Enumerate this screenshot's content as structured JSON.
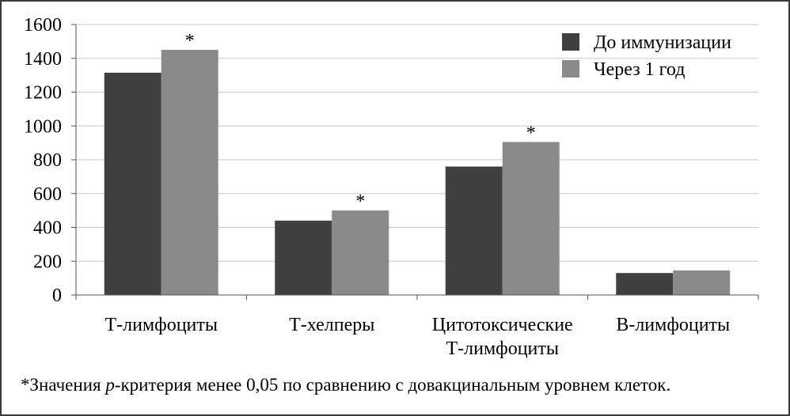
{
  "chart_data": {
    "type": "bar",
    "categories": [
      [
        "Т-лимфоциты"
      ],
      [
        "Т-хелперы"
      ],
      [
        "Цитотоксические",
        "Т-лимфоциты"
      ],
      [
        "В-лимфоциты"
      ]
    ],
    "series": [
      {
        "name": "До иммунизации",
        "color": "#404040",
        "values": [
          1315,
          440,
          760,
          130
        ]
      },
      {
        "name": "Через 1 год",
        "color": "#8a8a8a",
        "values": [
          1450,
          500,
          905,
          145
        ]
      }
    ],
    "significance_marks": [
      {
        "category_index": 0,
        "series_index": 1,
        "mark": "*"
      },
      {
        "category_index": 1,
        "series_index": 1,
        "mark": "*"
      },
      {
        "category_index": 2,
        "series_index": 1,
        "mark": "*"
      }
    ],
    "ylim": [
      0,
      1600
    ],
    "yticks": [
      0,
      200,
      400,
      600,
      800,
      1000,
      1200,
      1400,
      1600
    ],
    "grid": true,
    "legend_position": "top-right"
  },
  "footnote": {
    "prefix": "*Значения ",
    "italic": "p",
    "suffix": "-критерия менее 0,05 по сравнению с довакцинальным уровнем клеток."
  }
}
